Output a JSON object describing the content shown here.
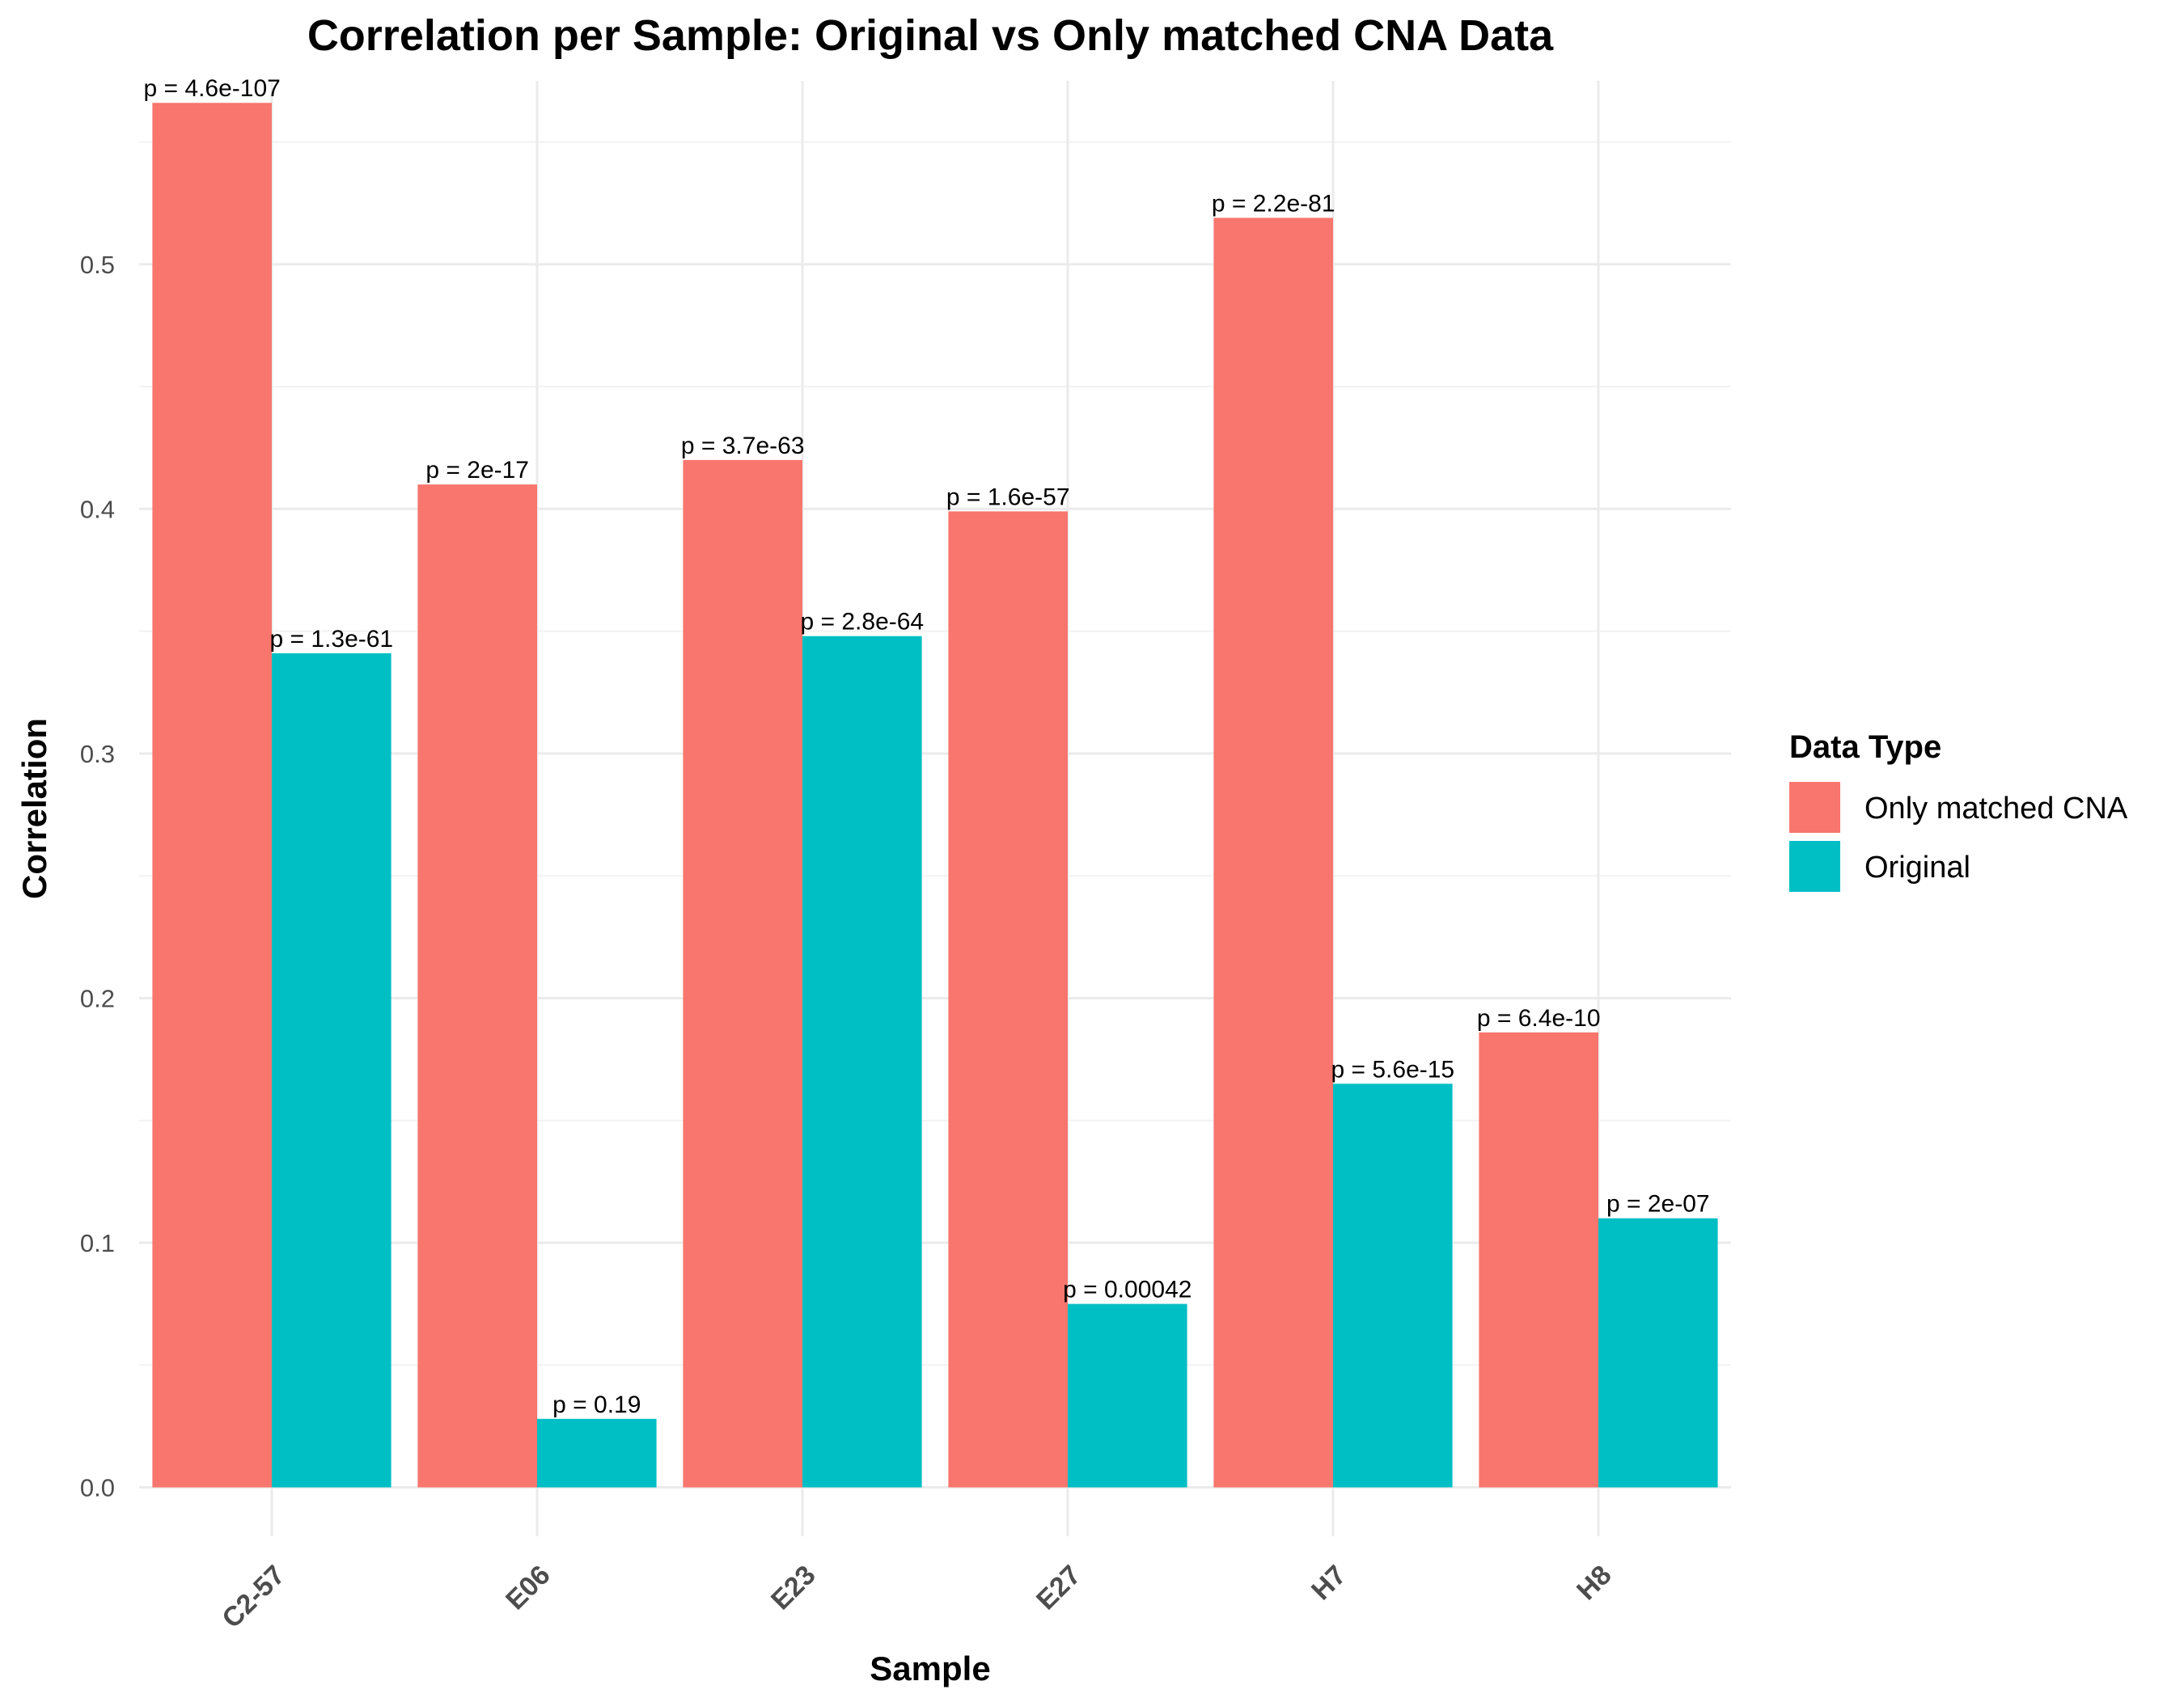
{
  "chart_data": {
    "type": "bar",
    "title": "Correlation per Sample: Original vs Only matched CNA Data",
    "xlabel": "Sample",
    "ylabel": "Correlation",
    "ylim": [
      -0.02,
      0.575
    ],
    "yticks": [
      0.0,
      0.1,
      0.2,
      0.3,
      0.4,
      0.5
    ],
    "ytick_labels": [
      "0.0",
      "0.1",
      "0.2",
      "0.3",
      "0.4",
      "0.5"
    ],
    "categories": [
      "C2-57",
      "E06",
      "E23",
      "E27",
      "H7",
      "H8"
    ],
    "grid": true,
    "legend": {
      "title": "Data Type",
      "placement": "right"
    },
    "series": [
      {
        "name": "Only matched CNA",
        "color": "#F8766D",
        "values": [
          0.566,
          0.41,
          0.42,
          0.399,
          0.519,
          0.186
        ],
        "labels": [
          "p = 4.6e-107",
          "p = 2e-17",
          "p = 3.7e-63",
          "p = 1.6e-57",
          "p = 2.2e-81",
          "p = 6.4e-10"
        ]
      },
      {
        "name": "Original",
        "color": "#00BFC4",
        "values": [
          0.341,
          0.028,
          0.348,
          0.075,
          0.165,
          0.11
        ],
        "labels": [
          "p = 1.3e-61",
          "p = 0.19",
          "p = 2.8e-64",
          "p = 0.00042",
          "p = 5.6e-15",
          "p = 2e-07"
        ]
      }
    ]
  }
}
